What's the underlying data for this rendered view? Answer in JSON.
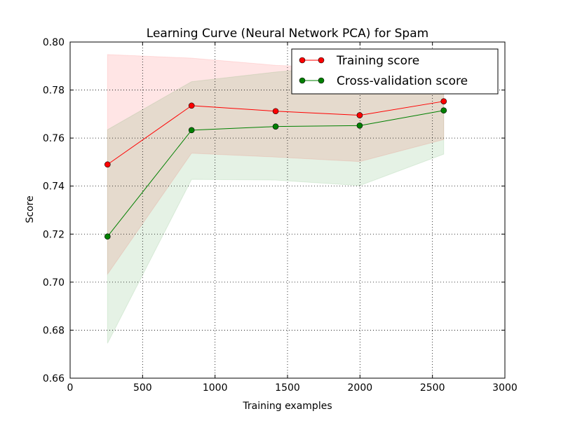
{
  "chart_data": {
    "type": "line",
    "title": "Learning Curve (Neural Network PCA) for Spam",
    "xlabel": "Training examples",
    "ylabel": "Score",
    "xlim": [
      0,
      3000
    ],
    "ylim": [
      0.66,
      0.8
    ],
    "x_ticks": [
      0,
      500,
      1000,
      1500,
      2000,
      2500,
      3000
    ],
    "y_ticks": [
      0.66,
      0.68,
      0.7,
      0.72,
      0.74,
      0.76,
      0.78,
      0.8
    ],
    "x_tick_labels": [
      "0",
      "500",
      "1000",
      "1500",
      "2000",
      "2500",
      "3000"
    ],
    "y_tick_labels": [
      "0.66",
      "0.68",
      "0.70",
      "0.72",
      "0.74",
      "0.76",
      "0.78",
      "0.80"
    ],
    "grid": true,
    "legend_position": "top-right",
    "x": [
      258,
      838,
      1418,
      1998,
      2578
    ],
    "series": [
      {
        "name": "Training score",
        "color": "#ff0000",
        "band_color": "#ff0000",
        "values": [
          0.749,
          0.7735,
          0.7712,
          0.7695,
          0.7753
        ],
        "band_upper": [
          0.7948,
          0.7933,
          0.7903,
          0.7888,
          0.7912
        ],
        "band_lower": [
          0.7033,
          0.7537,
          0.7521,
          0.7502,
          0.7594
        ]
      },
      {
        "name": "Cross-validation score",
        "color": "#008000",
        "band_color": "#008000",
        "values": [
          0.719,
          0.7633,
          0.7648,
          0.7652,
          0.7715
        ],
        "band_upper": [
          0.7635,
          0.7835,
          0.7875,
          0.7905,
          0.7895
        ],
        "band_lower": [
          0.6745,
          0.7428,
          0.7425,
          0.7402,
          0.7533
        ]
      }
    ]
  }
}
